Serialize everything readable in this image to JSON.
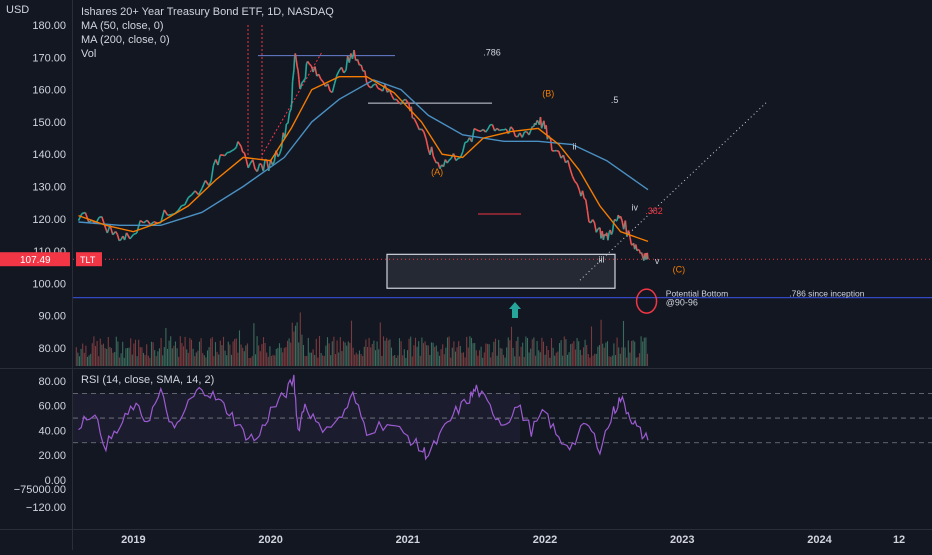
{
  "chart_data": [
    {
      "type": "candlestick",
      "title": "Ishares 20+ Year Treasury Bond ETF, 1D, NASDAQ",
      "currency": "USD",
      "symbol": "TLT",
      "last_price": "107.49",
      "indicators": [
        "MA (50, close, 0)",
        "MA (200, close, 0)",
        "Vol"
      ],
      "y_axis_labels": [
        "180.00",
        "170.00",
        "160.00",
        "150.00",
        "140.00",
        "130.00",
        "120.00",
        "110.00",
        "100.00",
        "90.00",
        "80.00"
      ],
      "ylim": [
        77,
        182
      ],
      "x_axis_labels": [
        "2019",
        "2020",
        "2021",
        "2022",
        "2023",
        "2024",
        "12"
      ],
      "xlim": [
        2018.56,
        2024.82
      ],
      "price_path": [
        [
          2018.6,
          121
        ],
        [
          2018.75,
          120
        ],
        [
          2018.87,
          115
        ],
        [
          2018.95,
          114
        ],
        [
          2019.1,
          120
        ],
        [
          2019.25,
          121
        ],
        [
          2019.4,
          126
        ],
        [
          2019.55,
          132
        ],
        [
          2019.65,
          141
        ],
        [
          2019.75,
          143
        ],
        [
          2019.82,
          138
        ],
        [
          2019.92,
          136
        ],
        [
          2020.0,
          137
        ],
        [
          2020.08,
          143
        ],
        [
          2020.15,
          155
        ],
        [
          2020.18,
          172
        ],
        [
          2020.22,
          160
        ],
        [
          2020.27,
          168
        ],
        [
          2020.35,
          164
        ],
        [
          2020.45,
          161
        ],
        [
          2020.55,
          168
        ],
        [
          2020.62,
          171
        ],
        [
          2020.7,
          163
        ],
        [
          2020.8,
          161
        ],
        [
          2020.9,
          158
        ],
        [
          2021.0,
          156
        ],
        [
          2021.05,
          151
        ],
        [
          2021.15,
          142
        ],
        [
          2021.22,
          137
        ],
        [
          2021.3,
          138
        ],
        [
          2021.4,
          141
        ],
        [
          2021.5,
          147
        ],
        [
          2021.6,
          149
        ],
        [
          2021.7,
          148
        ],
        [
          2021.8,
          145
        ],
        [
          2021.9,
          148
        ],
        [
          2021.95,
          151
        ],
        [
          2022.0,
          148
        ],
        [
          2022.05,
          142
        ],
        [
          2022.15,
          139
        ],
        [
          2022.25,
          130
        ],
        [
          2022.32,
          121
        ],
        [
          2022.4,
          116
        ],
        [
          2022.45,
          114
        ],
        [
          2022.5,
          118
        ],
        [
          2022.55,
          121
        ],
        [
          2022.62,
          114
        ],
        [
          2022.67,
          111
        ],
        [
          2022.72,
          109
        ],
        [
          2022.75,
          107.5
        ]
      ],
      "ma50_path": [
        [
          2018.6,
          121
        ],
        [
          2018.8,
          118
        ],
        [
          2019.0,
          116
        ],
        [
          2019.2,
          119
        ],
        [
          2019.4,
          124
        ],
        [
          2019.6,
          132
        ],
        [
          2019.8,
          139
        ],
        [
          2020.0,
          138
        ],
        [
          2020.15,
          148
        ],
        [
          2020.3,
          160
        ],
        [
          2020.5,
          164
        ],
        [
          2020.7,
          164
        ],
        [
          2020.9,
          159
        ],
        [
          2021.1,
          150
        ],
        [
          2021.25,
          140
        ],
        [
          2021.4,
          139
        ],
        [
          2021.55,
          145
        ],
        [
          2021.75,
          147
        ],
        [
          2021.95,
          148
        ],
        [
          2022.1,
          143
        ],
        [
          2022.25,
          135
        ],
        [
          2022.4,
          124
        ],
        [
          2022.55,
          116
        ],
        [
          2022.75,
          113
        ]
      ],
      "ma200_path": [
        [
          2018.6,
          119
        ],
        [
          2018.9,
          118
        ],
        [
          2019.2,
          118
        ],
        [
          2019.5,
          122
        ],
        [
          2019.8,
          130
        ],
        [
          2020.1,
          139
        ],
        [
          2020.3,
          150
        ],
        [
          2020.5,
          157
        ],
        [
          2020.75,
          163
        ],
        [
          2020.95,
          160
        ],
        [
          2021.15,
          152
        ],
        [
          2021.4,
          146
        ],
        [
          2021.7,
          144
        ],
        [
          2021.95,
          144
        ],
        [
          2022.2,
          143
        ],
        [
          2022.45,
          138
        ],
        [
          2022.75,
          129
        ]
      ],
      "annotations": [
        {
          "text": ".786",
          "x": 2021.55,
          "y": 170.5,
          "color": "#d1d4dc"
        },
        {
          "text": ".5",
          "x": 2022.48,
          "y": 155.8,
          "color": "#d1d4dc"
        },
        {
          "text": "(B)",
          "x": 2021.98,
          "y": 157.8,
          "color": "#f57c00"
        },
        {
          "text": "(A)",
          "x": 2021.17,
          "y": 133.5,
          "color": "#f57c00"
        },
        {
          "text": "ii",
          "x": 2022.2,
          "y": 141.5,
          "color": "#d1d4dc"
        },
        {
          "text": "iv",
          "x": 2022.63,
          "y": 122.5,
          "color": "#d1d4dc"
        },
        {
          "text": ".382",
          "x": 2022.73,
          "y": 121.5,
          "color": "#f23645"
        },
        {
          "text": "iii",
          "x": 2022.39,
          "y": 106.5,
          "color": "#d1d4dc"
        },
        {
          "text": "v",
          "x": 2022.8,
          "y": 106.0,
          "color": "#d1d4dc"
        },
        {
          "text": "(C)",
          "x": 2022.93,
          "y": 103.3,
          "color": "#f57c00"
        },
        {
          "text": "Potential Bottom",
          "x": 2022.88,
          "y": 96.0,
          "color": "#d1d4dc"
        },
        {
          "text": "@90-96",
          "x": 2022.88,
          "y": 93.1,
          "color": "#d1d4dc"
        },
        {
          "text": ".786 since inception",
          "x": 2023.78,
          "y": 96.0,
          "color": "#d1d4dc"
        }
      ],
      "support_line": 95.6,
      "target_zone": [
        98.5,
        109
      ]
    },
    {
      "type": "line",
      "title": "RSI (14, close, SMA, 14, 2)",
      "y_axis_labels": [
        "80.00",
        "60.00",
        "40.00",
        "20.00",
        "0.00",
        "−75000.00",
        "−120.00"
      ],
      "bands": [
        70,
        50,
        30
      ],
      "rsi_path": [
        [
          2018.6,
          45
        ],
        [
          2018.7,
          55
        ],
        [
          2018.8,
          28
        ],
        [
          2018.9,
          42
        ],
        [
          2019.0,
          60
        ],
        [
          2019.1,
          48
        ],
        [
          2019.2,
          70
        ],
        [
          2019.3,
          38
        ],
        [
          2019.4,
          62
        ],
        [
          2019.5,
          75
        ],
        [
          2019.6,
          66
        ],
        [
          2019.7,
          55
        ],
        [
          2019.8,
          38
        ],
        [
          2019.9,
          32
        ],
        [
          2020.0,
          56
        ],
        [
          2020.1,
          68
        ],
        [
          2020.17,
          82
        ],
        [
          2020.2,
          40
        ],
        [
          2020.25,
          62
        ],
        [
          2020.35,
          42
        ],
        [
          2020.5,
          48
        ],
        [
          2020.6,
          68
        ],
        [
          2020.7,
          40
        ],
        [
          2020.85,
          46
        ],
        [
          2021.0,
          35
        ],
        [
          2021.1,
          24
        ],
        [
          2021.15,
          20
        ],
        [
          2021.25,
          38
        ],
        [
          2021.35,
          55
        ],
        [
          2021.45,
          66
        ],
        [
          2021.5,
          74
        ],
        [
          2021.6,
          58
        ],
        [
          2021.7,
          45
        ],
        [
          2021.8,
          60
        ],
        [
          2021.9,
          40
        ],
        [
          2022.0,
          55
        ],
        [
          2022.1,
          32
        ],
        [
          2022.2,
          28
        ],
        [
          2022.3,
          46
        ],
        [
          2022.4,
          26
        ],
        [
          2022.5,
          55
        ],
        [
          2022.55,
          66
        ],
        [
          2022.62,
          52
        ],
        [
          2022.68,
          40
        ],
        [
          2022.75,
          32
        ]
      ]
    }
  ],
  "colors": {
    "background": "#131722",
    "text": "#d1d4dc",
    "ma50": "#f57c00",
    "ma200": "#4a90c2",
    "up": "#26a69a",
    "down": "#ef5350",
    "rsi": "#9c5bd1",
    "support": "#3448c5",
    "price_tag": "#f23645"
  }
}
